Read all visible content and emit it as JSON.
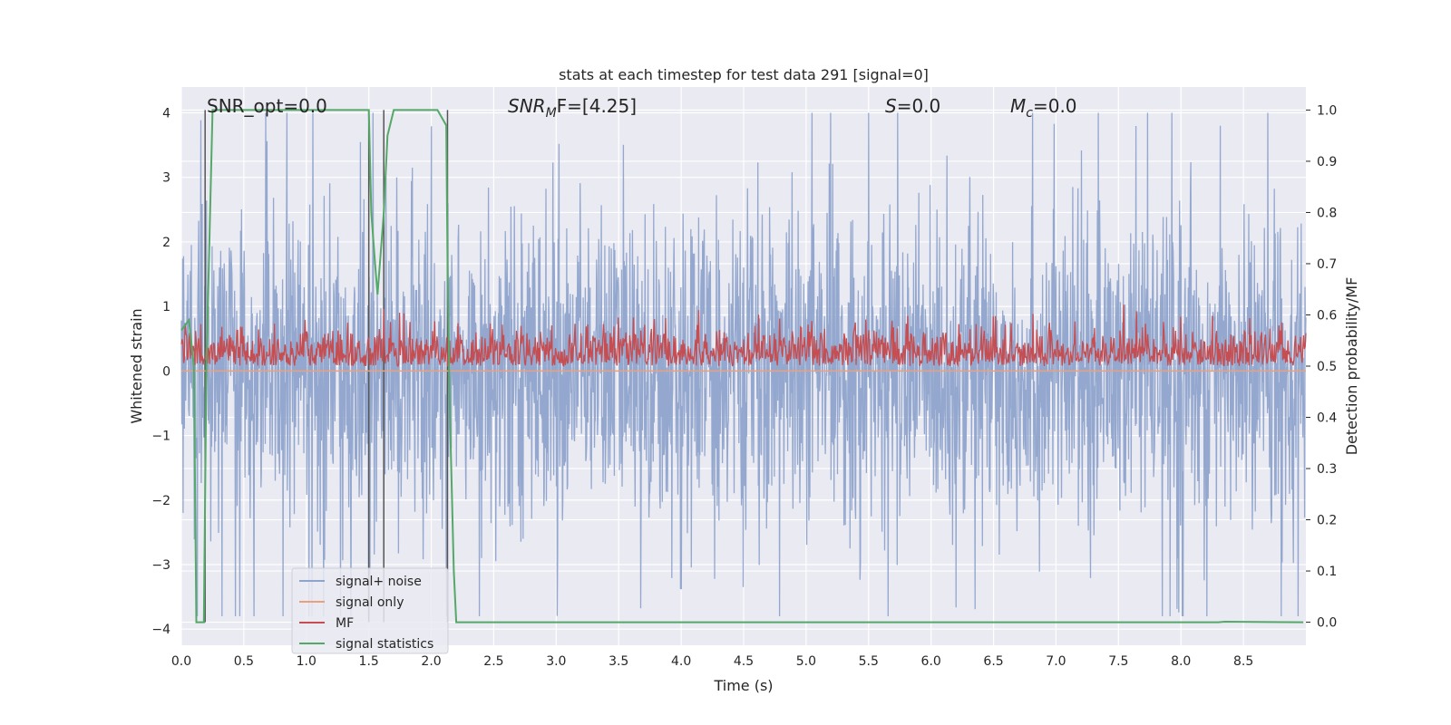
{
  "chart_data": {
    "type": "line",
    "title": "stats at each timestep for test data 291 [signal=0]",
    "xlabel": "Time (s)",
    "ylabel_left": "Whitened strain",
    "ylabel_right": "Detection probability/MF",
    "xlim": [
      0.0,
      9.0
    ],
    "ylim_left": [
      -4.25,
      4.4
    ],
    "ylim_right": [
      -0.045,
      1.045
    ],
    "x_ticks": [
      "0.0",
      "0.5",
      "1.0",
      "1.5",
      "2.0",
      "2.5",
      "3.0",
      "3.5",
      "4.0",
      "4.5",
      "5.0",
      "5.5",
      "6.0",
      "6.5",
      "7.0",
      "7.5",
      "8.0",
      "8.5"
    ],
    "y_ticks_left": [
      "−4",
      "−3",
      "−2",
      "−1",
      "0",
      "1",
      "2",
      "3",
      "4"
    ],
    "y_ticks_right": [
      "0.0",
      "0.1",
      "0.2",
      "0.3",
      "0.4",
      "0.5",
      "0.6",
      "0.7",
      "0.8",
      "0.9",
      "1.0"
    ],
    "grid": true,
    "legend_position": "lower-left",
    "annotations": {
      "snr_opt": "SNR_opt=0.0",
      "snr_mf_base": "SNR",
      "snr_mf_sub": "M",
      "snr_mf_rest": "F=[4.25]",
      "s_sym": "S",
      "s_val": "=0.0",
      "mc_base": "M",
      "mc_sub": "c",
      "mc_val": "=0.0"
    },
    "vertical_markers_s": [
      0.19,
      1.5,
      1.62,
      2.13
    ],
    "series": [
      {
        "name": "signal+ noise",
        "color": "#8fa4cc",
        "axis": "left",
        "description_range": [
          -3.8,
          4.0
        ]
      },
      {
        "name": "signal only",
        "color": "#e8a07f",
        "axis": "left",
        "values_constant": 0.0
      },
      {
        "name": "MF",
        "color": "#c44e52",
        "axis": "right",
        "description_range": [
          0.5,
          0.62
        ]
      },
      {
        "name": "signal statistics",
        "color": "#55a868",
        "axis": "right",
        "x": [
          0.0,
          0.03,
          0.06,
          0.1,
          0.12,
          0.18,
          0.2,
          0.25,
          0.3,
          1.5,
          1.52,
          1.55,
          1.57,
          1.62,
          1.65,
          1.7,
          2.05,
          2.12,
          2.13,
          2.15,
          2.18,
          2.2,
          8.3,
          8.35,
          8.98
        ],
        "y": [
          0.57,
          0.58,
          0.59,
          0.5,
          0.0,
          0.0,
          0.5,
          1.0,
          1.0,
          1.0,
          0.8,
          0.7,
          0.64,
          0.8,
          0.95,
          1.0,
          1.0,
          0.97,
          0.7,
          0.4,
          0.1,
          0.0,
          0.0,
          0.001,
          0.0
        ]
      }
    ]
  }
}
